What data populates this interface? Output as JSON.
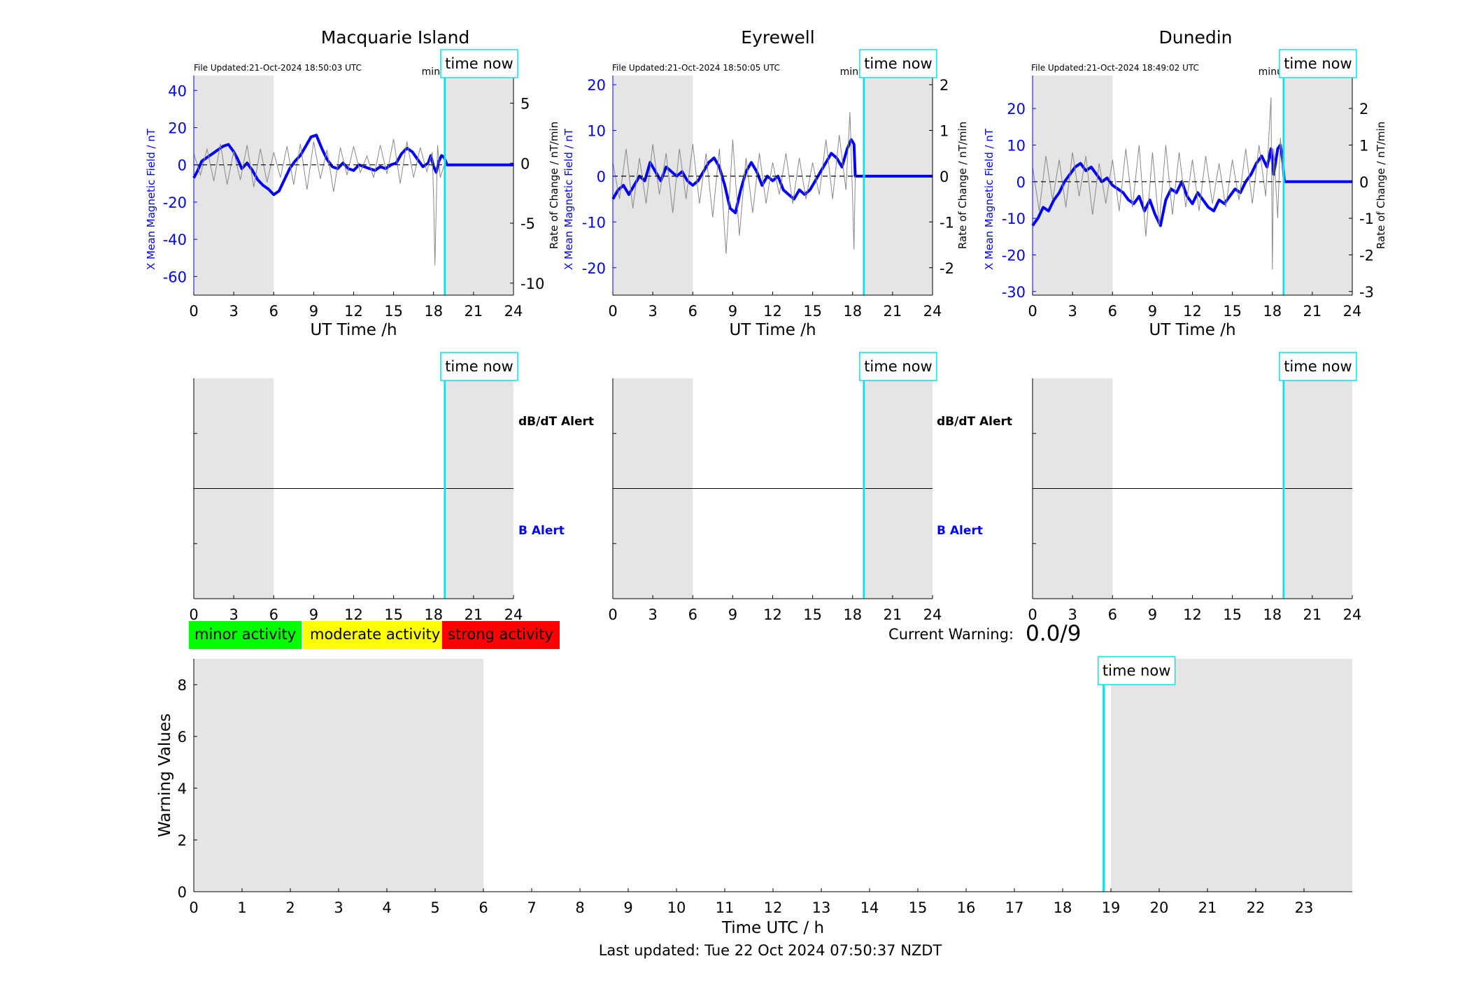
{
  "colors": {
    "shade": "#e5e5e5",
    "now_line": "#00e5ee",
    "x_mean": "#0000ff",
    "rate": "#888888",
    "minor": "#00ff00",
    "moderate": "#ffff00",
    "strong": "#ff0000"
  },
  "time_now_label": "time now",
  "stations": [
    {
      "name": "Macquarie Island",
      "file_updated": "File Updated:21-Oct-2024 18:50:03 UTC",
      "resolution_label": "minute resolution",
      "ylabel_left": "X Mean Magnetic Field / nT",
      "ylabel_right": "",
      "yticks_left": [
        40,
        20,
        0,
        -20,
        -40,
        -60
      ],
      "yticks_right": [
        5,
        0,
        -5,
        -10
      ]
    },
    {
      "name": "Eyrewell",
      "file_updated": "File Updated:21-Oct-2024 18:50:05 UTC",
      "resolution_label": "minute resolution",
      "ylabel_left": "X Mean Magnetic Field / nT",
      "ylabel_right": "Rate of Change / nT/min",
      "yticks_left": [
        20,
        10,
        0,
        -10,
        -20
      ],
      "yticks_right": [
        2,
        1,
        0,
        -1,
        -2
      ]
    },
    {
      "name": "Dunedin",
      "file_updated": "File Updated:21-Oct-2024 18:49:02 UTC",
      "resolution_label": "minute resolution",
      "ylabel_left": "X Mean Magnetic Field / nT",
      "ylabel_right": "Rate of Change / nT/min",
      "yticks_left": [
        20,
        10,
        0,
        -10,
        -20,
        -30
      ],
      "yticks_right": [
        2,
        1,
        0,
        -1,
        -2,
        -3
      ]
    }
  ],
  "alerts": {
    "dbdt_label": "dB/dT Alert",
    "b_label": "B Alert"
  },
  "legend": {
    "minor": "minor activity",
    "moderate": "moderate activity",
    "strong": "strong activity"
  },
  "current_warning": {
    "label": "Current Warning:",
    "value": "0.0/9"
  },
  "footer": "Last updated: Tue 22 Oct 2024 07:50:37 NZDT",
  "chart_data": [
    {
      "type": "line",
      "title": "Macquarie Island",
      "xlabel": "UT Time /h",
      "ylabel": "X Mean Magnetic Field / nT",
      "xlim": [
        0,
        24
      ],
      "ylim": [
        -70,
        48
      ],
      "y2lim": [
        -11,
        7.3
      ],
      "xticks": [
        0,
        3,
        6,
        9,
        12,
        15,
        18,
        21,
        24
      ],
      "shaded_hours": [
        [
          0,
          6
        ],
        [
          19,
          24
        ]
      ],
      "time_now": 18.85,
      "series": [
        {
          "name": "X Mean Magnetic Field",
          "axis": "left",
          "x": [
            0,
            0.3,
            0.6,
            1.0,
            1.4,
            1.8,
            2.2,
            2.6,
            3.0,
            3.3,
            3.6,
            4.0,
            4.4,
            4.8,
            5.2,
            5.6,
            6.0,
            6.4,
            6.8,
            7.2,
            7.6,
            8.0,
            8.4,
            8.8,
            9.2,
            9.6,
            10.0,
            10.4,
            10.8,
            11.2,
            11.6,
            12.0,
            12.4,
            12.8,
            13.2,
            13.6,
            14.0,
            14.4,
            14.8,
            15.2,
            15.6,
            16.0,
            16.4,
            16.8,
            17.2,
            17.6,
            17.8,
            18.0,
            18.2,
            18.4,
            18.6,
            18.8,
            19.0,
            24
          ],
          "y": [
            -7,
            -3,
            2,
            4,
            6,
            8,
            10,
            11,
            7,
            3,
            -2,
            1,
            -3,
            -8,
            -11,
            -13,
            -16,
            -14,
            -8,
            -2,
            2,
            5,
            10,
            15,
            16,
            9,
            3,
            -1,
            -2,
            1,
            -2,
            -3,
            0,
            -1,
            -2,
            -3,
            -1,
            -2,
            0,
            1,
            6,
            9,
            7,
            3,
            -1,
            1,
            5,
            -1,
            -4,
            2,
            5,
            4,
            0,
            0
          ]
        },
        {
          "name": "Rate of Change",
          "axis": "right",
          "x": [
            0,
            0.5,
            1.0,
            1.5,
            2.0,
            2.5,
            3.0,
            3.5,
            4.0,
            4.5,
            5.0,
            5.5,
            6.0,
            6.5,
            7.0,
            7.5,
            8.0,
            8.5,
            9.0,
            9.5,
            10.0,
            10.5,
            11.0,
            11.5,
            12.0,
            12.5,
            13.0,
            13.5,
            14.0,
            14.5,
            15.0,
            15.5,
            16.0,
            16.5,
            17.0,
            17.5,
            17.9,
            18.0,
            18.1,
            18.3,
            18.5,
            18.85
          ],
          "y": [
            0.8,
            -1.0,
            1.2,
            -1.5,
            1.6,
            -1.8,
            1.0,
            -1.4,
            1.5,
            -2.0,
            1.2,
            -1.6,
            0.9,
            -1.2,
            1.4,
            -1.8,
            1.6,
            -2.2,
            1.8,
            -1.3,
            1.1,
            -2.4,
            1.3,
            -1.0,
            1.4,
            -0.8,
            0.6,
            -1.2,
            1.5,
            -0.9,
            2.0,
            -1.7,
            1.8,
            -1.2,
            1.3,
            -0.7,
            0.9,
            -2.8,
            -8.5,
            1.5,
            -1.2,
            0
          ]
        },
        {
          "name": "baseline",
          "axis": "left",
          "x": [
            0,
            18.85
          ],
          "y": [
            0,
            0
          ]
        }
      ]
    },
    {
      "type": "line",
      "title": "Eyrewell",
      "xlabel": "UT Time /h",
      "ylabel": "X Mean Magnetic Field / nT",
      "y2label": "Rate of Change / nT/min",
      "xlim": [
        0,
        24
      ],
      "ylim": [
        -26,
        22
      ],
      "y2lim": [
        -2.6,
        2.2
      ],
      "xticks": [
        0,
        3,
        6,
        9,
        12,
        15,
        18,
        21,
        24
      ],
      "shaded_hours": [
        [
          0,
          6
        ],
        [
          19,
          24
        ]
      ],
      "time_now": 18.85,
      "series": [
        {
          "name": "X Mean Magnetic Field",
          "axis": "left",
          "x": [
            0,
            0.4,
            0.8,
            1.2,
            1.6,
            2.0,
            2.4,
            2.8,
            3.2,
            3.6,
            4.0,
            4.4,
            4.8,
            5.2,
            5.6,
            6.0,
            6.4,
            6.8,
            7.2,
            7.6,
            8.0,
            8.4,
            8.8,
            9.2,
            9.6,
            10.0,
            10.4,
            10.8,
            11.2,
            11.6,
            12.0,
            12.4,
            12.8,
            13.2,
            13.6,
            14.0,
            14.4,
            14.8,
            15.2,
            15.6,
            16.0,
            16.4,
            16.8,
            17.2,
            17.6,
            17.9,
            18.1,
            18.2,
            24
          ],
          "y": [
            -5,
            -3,
            -2,
            -4,
            -2,
            0,
            -1,
            3,
            1,
            -1,
            2,
            1,
            0,
            1,
            -1,
            -2,
            -1,
            1,
            3,
            4,
            2,
            -2,
            -7,
            -8,
            -3,
            1,
            3,
            1,
            -2,
            0,
            -1,
            0,
            -3,
            -4,
            -5,
            -3,
            -4,
            -3,
            -1,
            1,
            3,
            5,
            4,
            2,
            6,
            8,
            7,
            0,
            0
          ]
        },
        {
          "name": "Rate of Change",
          "axis": "right",
          "x": [
            0,
            0.5,
            1.0,
            1.5,
            2.0,
            2.5,
            3.0,
            3.5,
            4.0,
            4.5,
            5.0,
            5.5,
            6.0,
            6.5,
            7.0,
            7.5,
            8.0,
            8.5,
            9.0,
            9.5,
            10.0,
            10.5,
            11.0,
            11.5,
            12.0,
            12.5,
            13.0,
            13.5,
            14.0,
            14.5,
            15.0,
            15.5,
            16.0,
            16.5,
            17.0,
            17.5,
            17.8,
            18.0,
            18.1,
            18.2
          ],
          "y": [
            0.3,
            -0.5,
            0.6,
            -0.7,
            0.4,
            -0.6,
            0.7,
            -0.4,
            0.5,
            -0.8,
            0.6,
            -0.5,
            0.7,
            -0.6,
            0.5,
            -0.9,
            0.6,
            -1.7,
            0.8,
            -1.3,
            0.4,
            -0.8,
            0.5,
            -0.6,
            0.3,
            -0.4,
            0.5,
            -0.6,
            0.4,
            -0.5,
            0.3,
            -0.4,
            0.8,
            -0.5,
            0.9,
            -0.3,
            1.4,
            -0.5,
            -1.6,
            0
          ]
        },
        {
          "name": "baseline",
          "axis": "left",
          "x": [
            0,
            18.85
          ],
          "y": [
            0,
            0
          ]
        }
      ]
    },
    {
      "type": "line",
      "title": "Dunedin",
      "xlabel": "UT Time /h",
      "ylabel": "X Mean Magnetic Field / nT",
      "y2label": "Rate of Change / nT/min",
      "xlim": [
        0,
        24
      ],
      "ylim": [
        -31,
        29
      ],
      "y2lim": [
        -3.1,
        2.9
      ],
      "xticks": [
        0,
        3,
        6,
        9,
        12,
        15,
        18,
        21,
        24
      ],
      "shaded_hours": [
        [
          0,
          6
        ],
        [
          19,
          24
        ]
      ],
      "time_now": 18.85,
      "series": [
        {
          "name": "X Mean Magnetic Field",
          "axis": "left",
          "x": [
            0,
            0.4,
            0.8,
            1.2,
            1.6,
            2.0,
            2.4,
            2.8,
            3.2,
            3.6,
            4.0,
            4.4,
            4.8,
            5.2,
            5.6,
            6.0,
            6.4,
            6.8,
            7.2,
            7.6,
            8.0,
            8.4,
            8.8,
            9.2,
            9.6,
            10.0,
            10.4,
            10.8,
            11.2,
            11.6,
            12.0,
            12.4,
            12.8,
            13.2,
            13.6,
            14.0,
            14.4,
            14.8,
            15.2,
            15.6,
            16.0,
            16.4,
            16.8,
            17.2,
            17.6,
            17.9,
            18.1,
            18.4,
            18.6,
            18.8,
            18.9,
            24
          ],
          "y": [
            -12,
            -10,
            -7,
            -8,
            -5,
            -3,
            0,
            2,
            4,
            5,
            3,
            4,
            2,
            0,
            1,
            -1,
            -2,
            -3,
            -5,
            -6,
            -4,
            -8,
            -5,
            -9,
            -12,
            -5,
            -2,
            -3,
            0,
            -4,
            -6,
            -3,
            -5,
            -7,
            -8,
            -5,
            -6,
            -4,
            -2,
            -3,
            0,
            2,
            5,
            7,
            4,
            9,
            2,
            9,
            10,
            5,
            0,
            0
          ]
        },
        {
          "name": "Rate of Change",
          "axis": "right",
          "x": [
            0,
            0.5,
            1.0,
            1.5,
            2.0,
            2.5,
            3.0,
            3.5,
            4.0,
            4.5,
            5.0,
            5.5,
            6.0,
            6.5,
            7.0,
            7.5,
            8.0,
            8.5,
            9.0,
            9.5,
            10.0,
            10.5,
            11.0,
            11.5,
            12.0,
            12.5,
            13.0,
            13.5,
            14.0,
            14.5,
            15.0,
            15.5,
            16.0,
            16.5,
            17.0,
            17.5,
            17.9,
            18.0,
            18.1,
            18.4,
            18.6,
            18.85
          ],
          "y": [
            0.4,
            -0.8,
            0.7,
            -0.5,
            0.6,
            -0.7,
            0.8,
            -0.4,
            0.7,
            -0.9,
            0.5,
            -0.6,
            0.6,
            -0.8,
            0.9,
            -0.7,
            1.0,
            -1.5,
            0.8,
            -1.2,
            1.0,
            -0.9,
            0.8,
            -0.7,
            0.6,
            -0.8,
            0.7,
            -0.6,
            0.5,
            -0.7,
            0.6,
            -0.5,
            0.9,
            -0.6,
            1.0,
            -0.4,
            2.3,
            -2.4,
            0.9,
            -1.0,
            1.2,
            0
          ]
        },
        {
          "name": "baseline",
          "axis": "left",
          "x": [
            0,
            18.85
          ],
          "y": [
            0,
            0
          ]
        }
      ]
    },
    {
      "type": "line",
      "title": "Macquarie Island",
      "ylabel": "",
      "xlim": [
        0,
        24
      ],
      "xticks": [
        0,
        3,
        6,
        9,
        12,
        15,
        18,
        21,
        24
      ],
      "shaded_hours": [
        [
          0,
          6
        ],
        [
          19,
          24
        ]
      ],
      "time_now": 18.85,
      "series": []
    },
    {
      "type": "line",
      "title": "Eyrewell",
      "ylabel": "",
      "xlim": [
        0,
        24
      ],
      "xticks": [
        0,
        3,
        6,
        9,
        12,
        15,
        18,
        21,
        24
      ],
      "shaded_hours": [
        [
          0,
          6
        ],
        [
          19,
          24
        ]
      ],
      "time_now": 18.85,
      "series": []
    },
    {
      "type": "line",
      "title": "Dunedin",
      "ylabel": "",
      "xlim": [
        0,
        24
      ],
      "xticks": [
        0,
        3,
        6,
        9,
        12,
        15,
        18,
        21,
        24
      ],
      "shaded_hours": [
        [
          0,
          6
        ],
        [
          19,
          24
        ]
      ],
      "time_now": 18.85,
      "series": []
    },
    {
      "type": "bar",
      "title": "",
      "xlabel": "Time UTC / h",
      "ylabel": "Warning Values",
      "xlim": [
        0,
        24
      ],
      "ylim": [
        0,
        9
      ],
      "xticks": [
        0,
        1,
        2,
        3,
        4,
        5,
        6,
        7,
        8,
        9,
        10,
        11,
        12,
        13,
        14,
        15,
        16,
        17,
        18,
        19,
        20,
        21,
        22,
        23
      ],
      "yticks": [
        0,
        2,
        4,
        6,
        8
      ],
      "shaded_hours": [
        [
          0,
          6
        ],
        [
          19,
          24
        ]
      ],
      "time_now": 18.85,
      "series": []
    }
  ]
}
